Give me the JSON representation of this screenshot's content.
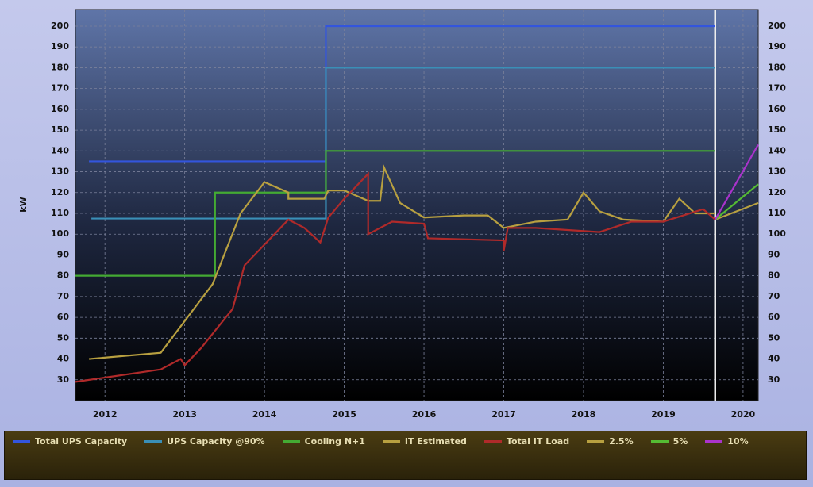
{
  "chart_data": {
    "type": "line",
    "y_label": "kW",
    "xlim": [
      2011.63,
      2020.19
    ],
    "xticks": [
      2012,
      2013,
      2014,
      2015,
      2016,
      2017,
      2018,
      2019,
      2020
    ],
    "ylim": [
      20,
      208
    ],
    "yticks": [
      30,
      40,
      50,
      60,
      70,
      80,
      90,
      100,
      110,
      120,
      130,
      140,
      150,
      160,
      170,
      180,
      190,
      200
    ],
    "grid": true,
    "right_axis": true,
    "vline_x": 2019.65,
    "legend": "bottom",
    "series": [
      {
        "name": "Total UPS Capacity",
        "color": "#3355dd",
        "x": [
          2011.8,
          2014.77,
          2014.77,
          2019.65
        ],
        "values": [
          135,
          135,
          200,
          200
        ]
      },
      {
        "name": "UPS Capacity @90%",
        "color": "#3a8fb7",
        "x": [
          2011.83,
          2014.77,
          2014.77,
          2019.65
        ],
        "values": [
          107.5,
          107.5,
          180,
          180
        ]
      },
      {
        "name": "Cooling N+1",
        "color": "#44aa33",
        "x": [
          2011.63,
          2013.38,
          2013.38,
          2014.77,
          2014.77,
          2019.65
        ],
        "values": [
          80,
          80,
          120,
          120,
          140,
          140
        ]
      },
      {
        "name": "IT Estimated",
        "color": "#b8a040",
        "x": [
          2011.8,
          2012.7,
          2013.35,
          2013.7,
          2014.0,
          2014.3,
          2014.3,
          2014.75,
          2014.8,
          2015.0,
          2015.3,
          2015.45,
          2015.5,
          2015.7,
          2016.0,
          2016.5,
          2016.8,
          2017.0,
          2017.4,
          2017.8,
          2018.0,
          2018.2,
          2018.5,
          2019.0,
          2019.2,
          2019.4,
          2019.65
        ],
        "values": [
          40,
          43,
          76,
          110,
          125,
          120,
          117,
          117,
          121,
          121,
          116,
          116,
          132,
          115,
          108,
          109,
          109,
          103,
          106,
          107,
          120,
          111,
          107,
          106,
          117,
          110,
          110
        ]
      },
      {
        "name": "Total IT Load",
        "color": "#b02a2a",
        "x": [
          2011.63,
          2012.7,
          2012.95,
          2013.0,
          2013.2,
          2013.6,
          2013.75,
          2014.0,
          2014.3,
          2014.5,
          2014.7,
          2014.8,
          2015.0,
          2015.3,
          2015.3,
          2015.6,
          2016.0,
          2016.05,
          2017.0,
          2017.0,
          2017.05,
          2017.4,
          2017.8,
          2018.2,
          2018.6,
          2019.0,
          2019.5,
          2019.65
        ],
        "values": [
          29,
          35,
          40,
          37,
          45,
          64,
          85,
          95,
          107,
          103,
          96,
          108,
          117,
          129,
          100,
          106,
          105,
          98,
          97,
          92,
          103,
          103,
          102,
          101,
          106,
          106,
          112,
          107
        ]
      },
      {
        "name": "2.5%",
        "color": "#b8a040",
        "x": [
          2019.65,
          2020.19
        ],
        "values": [
          107,
          115
        ]
      },
      {
        "name": "5%",
        "color": "#55bb33",
        "x": [
          2019.65,
          2020.19
        ],
        "values": [
          107,
          124
        ]
      },
      {
        "name": "10%",
        "color": "#aa33cc",
        "x": [
          2019.65,
          2020.19
        ],
        "values": [
          107,
          143
        ]
      }
    ]
  }
}
